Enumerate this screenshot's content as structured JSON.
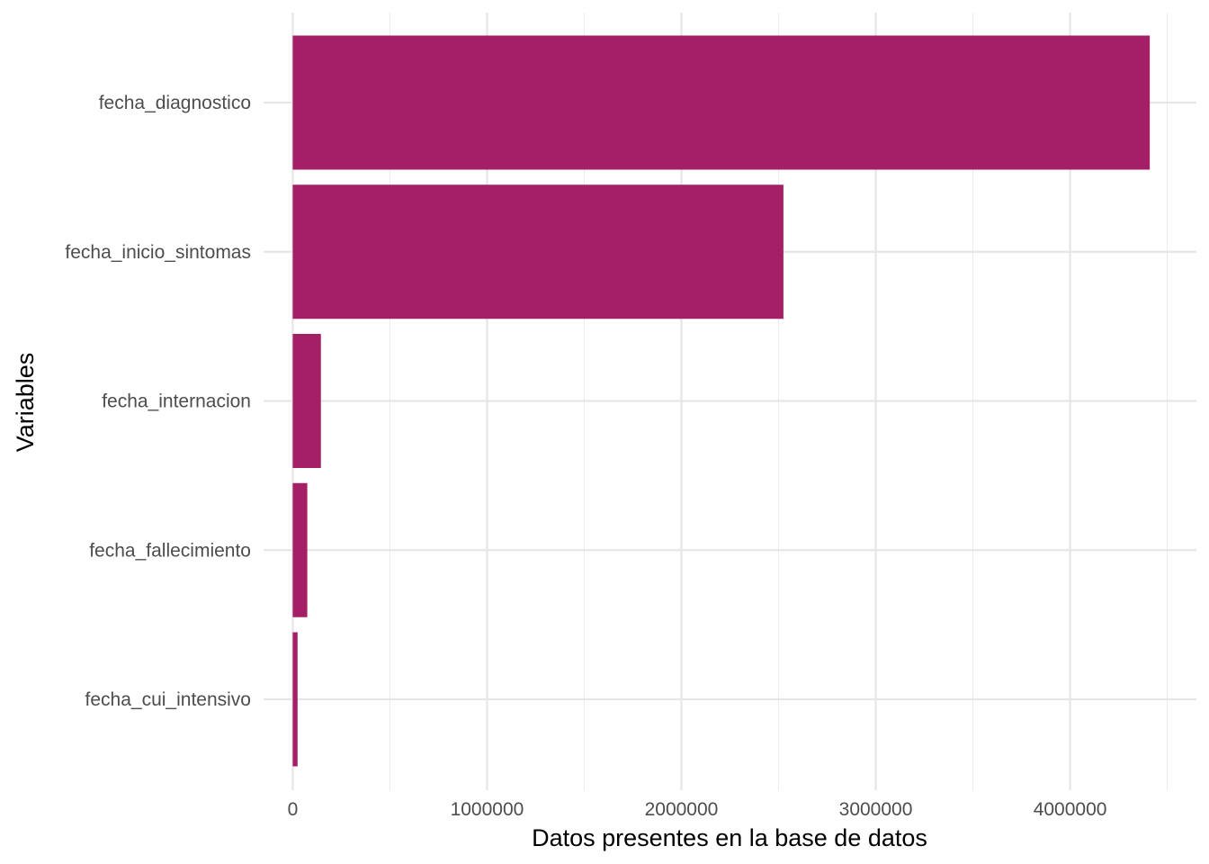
{
  "chart_data": {
    "type": "bar",
    "orientation": "horizontal",
    "categories": [
      "fecha_diagnostico",
      "fecha_inicio_sintomas",
      "fecha_internacion",
      "fecha_fallecimiento",
      "fecha_cui_intensivo"
    ],
    "values": [
      4410000,
      2525000,
      145000,
      75000,
      25000
    ],
    "xlabel": "Datos presentes en la base de datos",
    "ylabel": "Variables",
    "xlim": [
      -150000,
      4650000
    ],
    "x_ticks": [
      0,
      1000000,
      2000000,
      3000000,
      4000000
    ],
    "x_tick_labels": [
      "0",
      "1000000",
      "2000000",
      "3000000",
      "4000000"
    ],
    "x_minor_ticks": [
      500000,
      1500000,
      2500000,
      3500000,
      4500000
    ],
    "bar_color": "#a51f66",
    "grid": true,
    "legend": "none"
  }
}
